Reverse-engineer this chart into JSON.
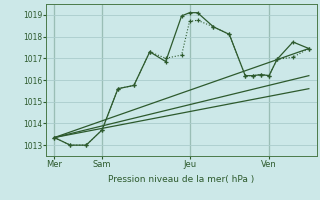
{
  "title": "Pression niveau de la mer( hPa )",
  "bg_color": "#cce8e8",
  "line_color": "#2d5a2d",
  "grid_color": "#aacccc",
  "text_color": "#2d5a2d",
  "ylim": [
    1012.5,
    1019.5
  ],
  "yticks": [
    1013,
    1014,
    1015,
    1016,
    1017,
    1018,
    1019
  ],
  "xlim": [
    0,
    17
  ],
  "day_labels": [
    "Mer",
    "Sam",
    "Jeu",
    "Ven"
  ],
  "day_positions": [
    0.5,
    3.5,
    9.0,
    14.0
  ],
  "vline_positions": [
    0.5,
    3.5,
    9.0,
    14.0
  ],
  "line_dotted_x": [
    0.5,
    1.5,
    2.5,
    3.5,
    4.5,
    5.5,
    6.5,
    7.5,
    8.5,
    9.0,
    9.5,
    10.5,
    11.5,
    12.5,
    13.0,
    13.5,
    14.0,
    14.5,
    15.5,
    16.5
  ],
  "line_dotted_y": [
    1013.35,
    1013.0,
    1013.0,
    1013.7,
    1015.6,
    1015.75,
    1017.3,
    1017.0,
    1017.15,
    1018.7,
    1018.75,
    1018.45,
    1018.1,
    1016.2,
    1016.2,
    1016.25,
    1016.2,
    1016.95,
    1017.05,
    1017.45
  ],
  "line_solid_x": [
    0.5,
    1.5,
    2.5,
    3.5,
    4.5,
    5.5,
    6.5,
    7.5,
    8.5,
    9.0,
    9.5,
    10.5,
    11.5,
    12.5,
    13.0,
    13.5,
    14.0,
    14.5,
    15.5,
    16.5
  ],
  "line_solid_y": [
    1013.35,
    1013.0,
    1013.0,
    1013.7,
    1015.6,
    1015.75,
    1017.3,
    1016.85,
    1018.95,
    1019.1,
    1019.1,
    1018.45,
    1018.1,
    1016.2,
    1016.2,
    1016.25,
    1016.2,
    1016.95,
    1017.75,
    1017.45
  ],
  "trend1_x": [
    0.5,
    16.5
  ],
  "trend1_y": [
    1013.35,
    1017.45
  ],
  "trend2_x": [
    0.5,
    16.5
  ],
  "trend2_y": [
    1013.35,
    1016.2
  ],
  "trend3_x": [
    0.5,
    16.5
  ],
  "trend3_y": [
    1013.35,
    1015.6
  ]
}
